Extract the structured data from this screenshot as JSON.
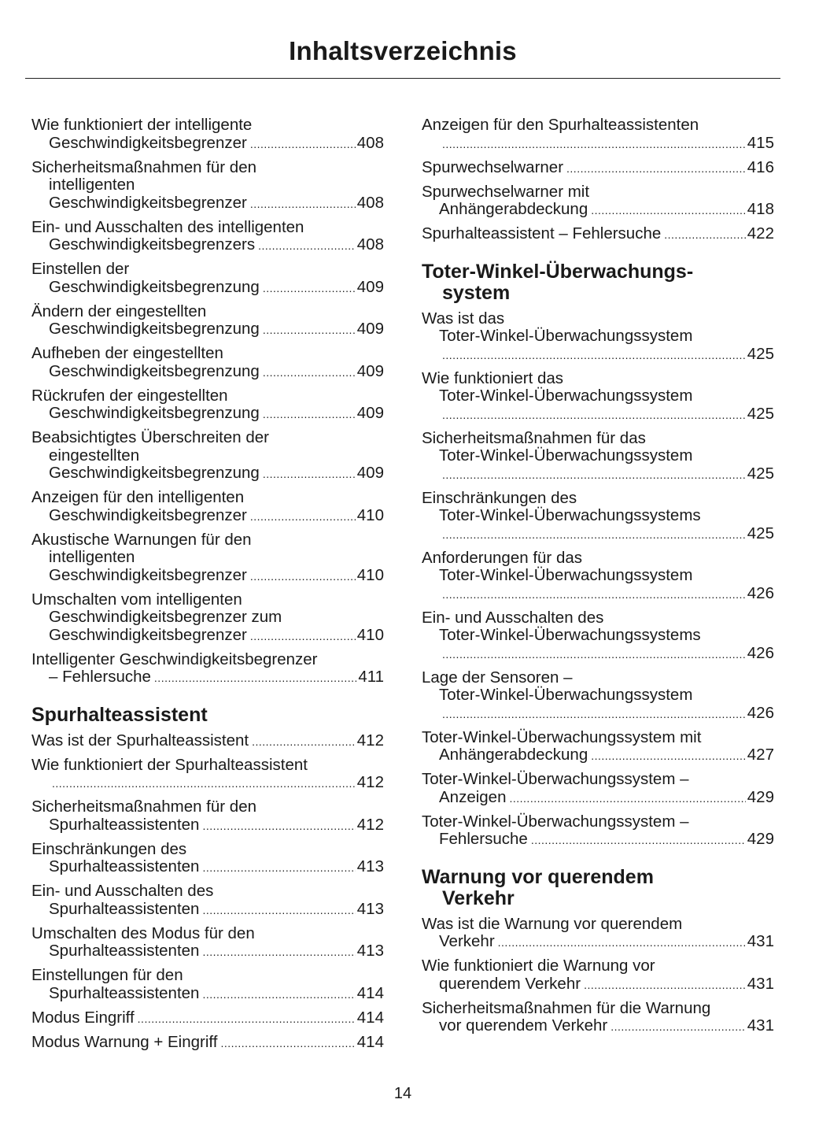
{
  "title": "Inhaltsverzeichnis",
  "page_number": "14",
  "left": [
    {
      "type": "entry",
      "lines": [
        "Wie funktioniert der intelligente",
        "Geschwindigkeitsbegrenzer"
      ],
      "page": "408"
    },
    {
      "type": "entry",
      "lines": [
        "Sicherheitsmaßnahmen für den",
        "intelligenten",
        "Geschwindigkeitsbegrenzer"
      ],
      "page": "408"
    },
    {
      "type": "entry",
      "lines": [
        "Ein- und Ausschalten des intelligenten",
        "Geschwindigkeitsbegrenzers"
      ],
      "page": "408"
    },
    {
      "type": "entry",
      "lines": [
        "Einstellen der",
        "Geschwindigkeitsbegrenzung"
      ],
      "page": "409"
    },
    {
      "type": "entry",
      "lines": [
        "Ändern der eingestellten",
        "Geschwindigkeitsbegrenzung"
      ],
      "page": "409"
    },
    {
      "type": "entry",
      "lines": [
        "Aufheben der eingestellten",
        "Geschwindigkeitsbegrenzung"
      ],
      "page": "409"
    },
    {
      "type": "entry",
      "lines": [
        "Rückrufen der eingestellten",
        "Geschwindigkeitsbegrenzung"
      ],
      "page": "409"
    },
    {
      "type": "entry",
      "lines": [
        "Beabsichtigtes Überschreiten der",
        "eingestellten",
        "Geschwindigkeitsbegrenzung"
      ],
      "page": "409"
    },
    {
      "type": "entry",
      "lines": [
        "Anzeigen für den intelligenten",
        "Geschwindigkeitsbegrenzer"
      ],
      "page": "410"
    },
    {
      "type": "entry",
      "lines": [
        "Akustische Warnungen für den",
        "intelligenten",
        "Geschwindigkeitsbegrenzer"
      ],
      "page": "410"
    },
    {
      "type": "entry",
      "lines": [
        "Umschalten vom intelligenten",
        "Geschwindigkeitsbegrenzer zum",
        "Geschwindigkeitsbegrenzer"
      ],
      "page": "410"
    },
    {
      "type": "entry",
      "lines": [
        "Intelligenter Geschwindigkeitsbegrenzer",
        "– Fehlersuche"
      ],
      "page": "411"
    },
    {
      "type": "heading",
      "lines": [
        "Spurhalteassistent"
      ]
    },
    {
      "type": "entry",
      "lines": [
        "Was ist der Spurhalteassistent"
      ],
      "page": "412"
    },
    {
      "type": "entry",
      "lines": [
        "Wie funktioniert der Spurhalteassistent",
        ""
      ],
      "page": "412"
    },
    {
      "type": "entry",
      "lines": [
        "Sicherheitsmaßnahmen für den",
        "Spurhalteassistenten"
      ],
      "page": "412"
    },
    {
      "type": "entry",
      "lines": [
        "Einschränkungen des",
        "Spurhalteassistenten"
      ],
      "page": "413"
    },
    {
      "type": "entry",
      "lines": [
        "Ein- und Ausschalten des",
        "Spurhalteassistenten"
      ],
      "page": "413"
    },
    {
      "type": "entry",
      "lines": [
        "Umschalten des Modus für den",
        "Spurhalteassistenten"
      ],
      "page": "413"
    },
    {
      "type": "entry",
      "lines": [
        "Einstellungen für den",
        "Spurhalteassistenten"
      ],
      "page": "414"
    },
    {
      "type": "entry",
      "lines": [
        "Modus Eingriff"
      ],
      "page": "414"
    },
    {
      "type": "entry",
      "lines": [
        "Modus Warnung + Eingriff"
      ],
      "page": "414"
    }
  ],
  "right": [
    {
      "type": "entry",
      "lines": [
        "Anzeigen für den Spurhalteassistenten",
        ""
      ],
      "page": "415"
    },
    {
      "type": "entry",
      "lines": [
        "Spurwechselwarner"
      ],
      "page": "416"
    },
    {
      "type": "entry",
      "lines": [
        "Spurwechselwarner mit",
        "Anhängerabdeckung"
      ],
      "page": "418"
    },
    {
      "type": "entry",
      "lines": [
        "Spurhalteassistent – Fehlersuche"
      ],
      "page": "422"
    },
    {
      "type": "heading",
      "lines": [
        "Toter-Winkel-Überwachungs-",
        "system"
      ]
    },
    {
      "type": "entry",
      "lines": [
        "Was ist das",
        "Toter-Winkel-Überwachungssystem",
        ""
      ],
      "page": "425"
    },
    {
      "type": "entry",
      "lines": [
        "Wie funktioniert das",
        "Toter-Winkel-Überwachungssystem",
        ""
      ],
      "page": "425"
    },
    {
      "type": "entry",
      "lines": [
        "Sicherheitsmaßnahmen für das",
        "Toter-Winkel-Überwachungssystem",
        ""
      ],
      "page": "425"
    },
    {
      "type": "entry",
      "lines": [
        "Einschränkungen des",
        "Toter-Winkel-Überwachungssystems",
        ""
      ],
      "page": "425"
    },
    {
      "type": "entry",
      "lines": [
        "Anforderungen für das",
        "Toter-Winkel-Überwachungssystem",
        ""
      ],
      "page": "426"
    },
    {
      "type": "entry",
      "lines": [
        "Ein- und Ausschalten des",
        "Toter-Winkel-Überwachungssystems",
        ""
      ],
      "page": "426"
    },
    {
      "type": "entry",
      "lines": [
        "Lage der Sensoren –",
        "Toter-Winkel-Überwachungssystem",
        ""
      ],
      "page": "426"
    },
    {
      "type": "entry",
      "lines": [
        "Toter-Winkel-Überwachungssystem mit",
        "Anhängerabdeckung"
      ],
      "page": "427"
    },
    {
      "type": "entry",
      "lines": [
        "Toter-Winkel-Überwachungssystem –",
        "Anzeigen"
      ],
      "page": "429"
    },
    {
      "type": "entry",
      "lines": [
        "Toter-Winkel-Überwachungssystem –",
        "Fehlersuche"
      ],
      "page": "429"
    },
    {
      "type": "heading",
      "lines": [
        "Warnung vor querendem",
        "Verkehr"
      ]
    },
    {
      "type": "entry",
      "lines": [
        "Was ist die Warnung vor querendem",
        "Verkehr"
      ],
      "page": "431"
    },
    {
      "type": "entry",
      "lines": [
        "Wie funktioniert die Warnung vor",
        "querendem Verkehr"
      ],
      "page": "431"
    },
    {
      "type": "entry",
      "lines": [
        "Sicherheitsmaßnahmen für die Warnung",
        "vor querendem Verkehr"
      ],
      "page": "431"
    }
  ]
}
